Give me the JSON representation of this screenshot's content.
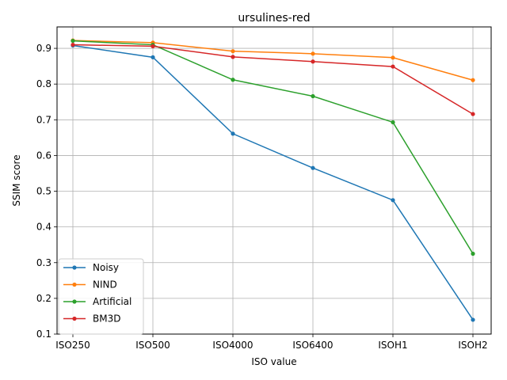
{
  "chart_data": {
    "type": "line",
    "title": "ursulines-red",
    "xlabel": "ISO value",
    "ylabel": "SSIM score",
    "categories": [
      "ISO250",
      "ISO500",
      "ISO4000",
      "ISO6400",
      "ISOH1",
      "ISOH2"
    ],
    "ylim": [
      0.1,
      0.96
    ],
    "yticks": [
      0.1,
      0.2,
      0.3,
      0.4,
      0.5,
      0.6,
      0.7,
      0.8,
      0.9
    ],
    "grid": true,
    "legend_position": "lower-left",
    "series": [
      {
        "name": "Noisy",
        "color": "#1f77b4",
        "values": [
          0.908,
          0.875,
          0.661,
          0.565,
          0.475,
          0.14
        ]
      },
      {
        "name": "NIND",
        "color": "#ff7f0e",
        "values": [
          0.922,
          0.916,
          0.892,
          0.885,
          0.874,
          0.811
        ]
      },
      {
        "name": "Artificial",
        "color": "#2ca02c",
        "values": [
          0.921,
          0.91,
          0.812,
          0.766,
          0.693,
          0.325
        ]
      },
      {
        "name": "BM3D",
        "color": "#d62728",
        "values": [
          0.91,
          0.906,
          0.876,
          0.863,
          0.849,
          0.716
        ]
      }
    ]
  }
}
